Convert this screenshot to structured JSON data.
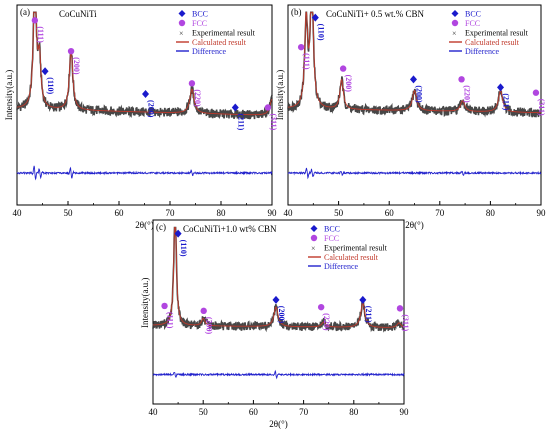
{
  "colors": {
    "bcc": "#1a1acc",
    "fcc": "#b146e0",
    "experimental": "#333333",
    "calculated": "#c0392b",
    "difference": "#2222cc",
    "axis": "#000000"
  },
  "chart_data": [
    {
      "type": "line",
      "panel_label": "(a)",
      "title": "CoCuNiTi",
      "xlabel": "2θ(°)",
      "ylabel": "Intensity(a.u.)",
      "xlim": [
        40,
        90
      ],
      "xticks": [
        40,
        50,
        60,
        70,
        80,
        90
      ],
      "xtick_labels": [
        "40",
        "50",
        "60",
        "70",
        "80",
        "90"
      ],
      "legend": {
        "position": "top-right",
        "entries": [
          "BCC",
          "FCC",
          "Experimental result",
          "Calculated result",
          "Difference"
        ]
      },
      "peaks": [
        {
          "x": 43.5,
          "height": 0.95,
          "width": 0.35
        },
        {
          "x": 44.4,
          "height": 0.35,
          "width": 0.35
        },
        {
          "x": 50.6,
          "height": 0.45,
          "width": 0.4
        },
        {
          "x": 74.3,
          "height": 0.18,
          "width": 0.5
        },
        {
          "x": 90.0,
          "height": 0.12,
          "width": 0.5
        }
      ],
      "baseline": [
        0.3,
        0.25
      ],
      "diff_features": [
        {
          "x": 43.5,
          "amp": 0.9
        },
        {
          "x": 44.5,
          "amp": 0.6
        },
        {
          "x": 50.6,
          "amp": 0.7
        },
        {
          "x": 74.3,
          "amp": 0.35
        }
      ],
      "annotations": [
        {
          "phase": "FCC",
          "label": "(111)",
          "x": 43.5,
          "y": 0.96
        },
        {
          "phase": "BCC",
          "label": "(110)",
          "x": 45.5,
          "y": 0.58
        },
        {
          "phase": "FCC",
          "label": "(200)",
          "x": 50.6,
          "y": 0.73
        },
        {
          "phase": "BCC",
          "label": "(200)",
          "x": 65.2,
          "y": 0.41
        },
        {
          "phase": "FCC",
          "label": "(220)",
          "x": 74.3,
          "y": 0.49
        },
        {
          "phase": "BCC",
          "label": "(211)",
          "x": 82.8,
          "y": 0.31
        },
        {
          "phase": "FCC",
          "label": "(311)",
          "x": 89.2,
          "y": 0.31
        }
      ]
    },
    {
      "type": "line",
      "panel_label": "(b)",
      "title": "CoCuNiTi+ 0.5 wt.% CBN",
      "xlabel": "2θ(°)",
      "ylabel": "Intensity(a.u.)",
      "xlim": [
        40,
        90
      ],
      "xticks": [
        40,
        50,
        60,
        70,
        80,
        90
      ],
      "xtick_labels": [
        "40",
        "50",
        "60",
        "70",
        "80",
        "90"
      ],
      "legend": {
        "position": "top-right",
        "entries": [
          "BCC",
          "FCC",
          "Experimental result",
          "Calculated result",
          "Difference"
        ]
      },
      "peaks": [
        {
          "x": 43.6,
          "height": 0.65,
          "width": 0.35
        },
        {
          "x": 44.7,
          "height": 0.95,
          "width": 0.35
        },
        {
          "x": 50.6,
          "height": 0.22,
          "width": 0.4
        },
        {
          "x": 65.0,
          "height": 0.15,
          "width": 0.5
        },
        {
          "x": 74.5,
          "height": 0.08,
          "width": 0.5
        },
        {
          "x": 82.0,
          "height": 0.16,
          "width": 0.5
        }
      ],
      "baseline": [
        0.3,
        0.27
      ],
      "diff_features": [
        {
          "x": 43.8,
          "amp": 0.6
        },
        {
          "x": 44.8,
          "amp": 0.5
        },
        {
          "x": 50.6,
          "amp": 0.3
        },
        {
          "x": 74.5,
          "amp": 0.25
        }
      ],
      "annotations": [
        {
          "phase": "FCC",
          "label": "(111)",
          "x": 42.6,
          "y": 0.76
        },
        {
          "phase": "BCC",
          "label": "(110)",
          "x": 45.4,
          "y": 0.98
        },
        {
          "phase": "FCC",
          "label": "(200)",
          "x": 50.9,
          "y": 0.6
        },
        {
          "phase": "BCC",
          "label": "(200)",
          "x": 64.8,
          "y": 0.52
        },
        {
          "phase": "FCC",
          "label": "(220)",
          "x": 74.3,
          "y": 0.52
        },
        {
          "phase": "BCC",
          "label": "(211)",
          "x": 82.0,
          "y": 0.46
        },
        {
          "phase": "FCC",
          "label": "(311)",
          "x": 89.0,
          "y": 0.42
        }
      ]
    },
    {
      "type": "line",
      "panel_label": "(c)",
      "title": "CoCuNiTi+1.0 wt% CBN",
      "xlabel": "2θ(°)",
      "ylabel": "Intensity(a.u.)",
      "xlim": [
        40,
        90
      ],
      "xticks": [
        40,
        50,
        60,
        70,
        80,
        90
      ],
      "xtick_labels": [
        "40",
        "50",
        "60",
        "70",
        "80",
        "90"
      ],
      "legend": {
        "position": "top-right",
        "entries": [
          "BCC",
          "FCC",
          "Experimental result",
          "Calculated result",
          "Difference"
        ]
      },
      "peaks": [
        {
          "x": 44.4,
          "height": 0.95,
          "width": 0.3
        },
        {
          "x": 50.0,
          "height": 0.06,
          "width": 0.4
        },
        {
          "x": 64.5,
          "height": 0.16,
          "width": 0.5
        },
        {
          "x": 74.0,
          "height": 0.04,
          "width": 0.5
        },
        {
          "x": 81.8,
          "height": 0.2,
          "width": 0.5
        },
        {
          "x": 89.0,
          "height": 0.04,
          "width": 0.5
        }
      ],
      "baseline": [
        0.22,
        0.2
      ],
      "diff_features": [
        {
          "x": 44.4,
          "amp": 0.3
        },
        {
          "x": 64.5,
          "amp": 0.4
        }
      ],
      "annotations": [
        {
          "phase": "FCC",
          "label": "(111)",
          "x": 42.3,
          "y": 0.38
        },
        {
          "phase": "BCC",
          "label": "(110)",
          "x": 45.0,
          "y": 0.97
        },
        {
          "phase": "FCC",
          "label": "(200)",
          "x": 50.1,
          "y": 0.34
        },
        {
          "phase": "BCC",
          "label": "(200)",
          "x": 64.5,
          "y": 0.43
        },
        {
          "phase": "FCC",
          "label": "(220)",
          "x": 73.5,
          "y": 0.37
        },
        {
          "phase": "BCC",
          "label": "(211)",
          "x": 81.8,
          "y": 0.43
        },
        {
          "phase": "FCC",
          "label": "(311)",
          "x": 89.2,
          "y": 0.36
        }
      ]
    }
  ]
}
